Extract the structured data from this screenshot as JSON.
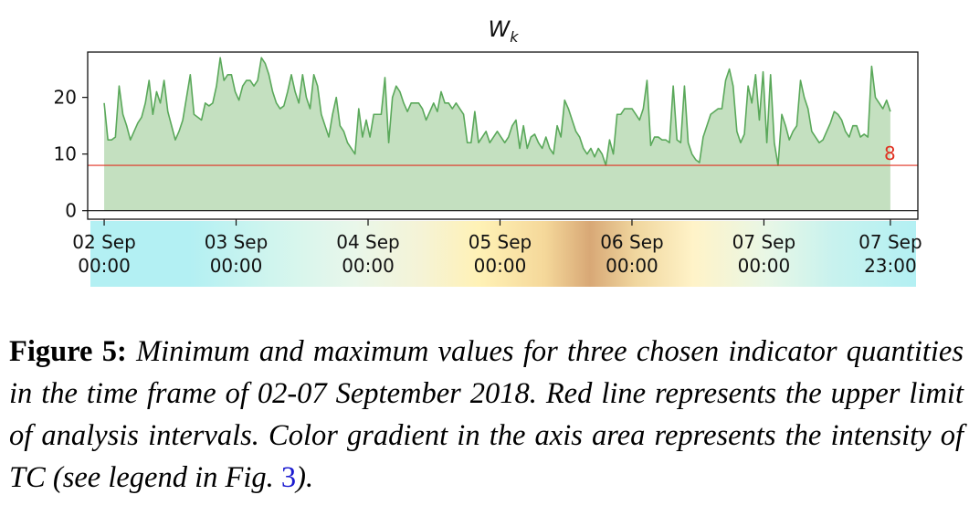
{
  "chart_data": {
    "type": "area",
    "title": "W",
    "title_subscript": "k",
    "x_ticks": [
      {
        "date": "2018-09-02 00:00",
        "line1": "02 Sep",
        "line2": "00:00"
      },
      {
        "date": "2018-09-03 00:00",
        "line1": "03 Sep",
        "line2": "00:00"
      },
      {
        "date": "2018-09-04 00:00",
        "line1": "04 Sep",
        "line2": "00:00"
      },
      {
        "date": "2018-09-05 00:00",
        "line1": "05 Sep",
        "line2": "00:00"
      },
      {
        "date": "2018-09-06 00:00",
        "line1": "06 Sep",
        "line2": "00:00"
      },
      {
        "date": "2018-09-07 00:00",
        "line1": "07 Sep",
        "line2": "00:00"
      },
      {
        "date": "2018-09-07 23:00",
        "line1": "07 Sep",
        "line2": "23:00"
      }
    ],
    "y_ticks": [
      0,
      10,
      20
    ],
    "ylim": [
      -1.5,
      28
    ],
    "xlim": [
      "2018-09-01 21:00",
      "2018-09-08 04:00"
    ],
    "reference_line": {
      "value": 8,
      "label": "8",
      "color": "#e03020"
    },
    "series": [
      {
        "color": "#5aa85a",
        "fill": "#c4e0c0",
        "values": [
          19,
          12.5,
          12.5,
          13,
          22,
          17,
          15,
          12.5,
          14,
          15.5,
          16.5,
          19,
          23,
          17,
          21,
          19,
          23,
          17.5,
          15,
          12.5,
          14,
          16,
          20,
          24,
          17,
          16.5,
          16,
          19,
          18.5,
          19,
          22,
          27,
          23,
          24,
          24,
          21,
          19.5,
          22,
          23,
          23,
          22,
          23,
          27,
          26,
          24,
          21,
          19,
          18,
          18.5,
          21,
          24,
          21,
          19,
          24,
          20,
          18,
          24,
          22,
          17,
          15,
          13,
          17,
          20,
          15,
          14,
          12,
          11,
          10,
          18,
          13,
          16,
          13,
          17,
          17,
          17,
          23.5,
          12,
          20,
          22,
          21,
          19,
          17.5,
          19,
          19,
          19,
          18,
          16,
          17.5,
          19,
          17.5,
          21,
          19,
          19,
          18,
          19,
          18,
          17,
          12,
          12,
          17.5,
          12,
          13,
          14,
          12,
          13,
          14,
          13,
          12,
          13,
          15,
          16,
          11,
          15,
          11,
          13,
          13.5,
          12,
          11,
          13,
          11,
          10,
          15,
          13,
          19.5,
          18,
          16,
          14,
          13,
          11,
          10,
          11,
          9.5,
          11,
          10,
          8,
          12.5,
          10,
          17,
          17,
          18,
          18,
          18,
          17,
          16,
          18,
          23,
          11.5,
          13,
          13,
          12.5,
          12.5,
          12,
          22,
          12.5,
          12,
          22,
          12,
          10,
          9,
          8.5,
          13,
          15,
          17,
          17.5,
          18,
          18,
          23,
          25,
          22,
          14,
          12,
          13.5,
          22,
          19,
          24,
          16,
          24.5,
          12,
          24,
          12,
          8,
          17,
          15,
          12.5,
          14,
          15,
          23,
          20,
          18,
          14,
          13,
          12,
          12.5,
          14,
          15.5,
          17.5,
          17,
          16,
          14,
          13,
          15,
          15,
          13,
          13.5,
          13,
          25.5,
          20,
          19,
          18,
          19.5,
          17.5
        ]
      }
    ],
    "tc_gradient": {
      "stops": [
        {
          "offset": 0,
          "color": "#b3f0f3"
        },
        {
          "offset": 0.12,
          "color": "#b3f0f3"
        },
        {
          "offset": 0.22,
          "color": "#d0f5ee"
        },
        {
          "offset": 0.32,
          "color": "#e9f7ea"
        },
        {
          "offset": 0.4,
          "color": "#f5f3d6"
        },
        {
          "offset": 0.47,
          "color": "#fff2b6"
        },
        {
          "offset": 0.55,
          "color": "#f5d89a"
        },
        {
          "offset": 0.605,
          "color": "#d8a876"
        },
        {
          "offset": 0.66,
          "color": "#f0d69e"
        },
        {
          "offset": 0.73,
          "color": "#fff3c8"
        },
        {
          "offset": 0.82,
          "color": "#e8f7e6"
        },
        {
          "offset": 0.9,
          "color": "#c8f2ee"
        },
        {
          "offset": 1,
          "color": "#b3f0f3"
        }
      ]
    }
  },
  "caption": {
    "label": "Figure 5:",
    "text": " Minimum and maximum values for three chosen indicator quantities in the time frame of 02-07 September 2018. Red line represents the upper limit of analysis intervals. Color gradient in the axis area represents the intensity of TC (see legend in Fig. ",
    "link": "3",
    "end": ")."
  }
}
